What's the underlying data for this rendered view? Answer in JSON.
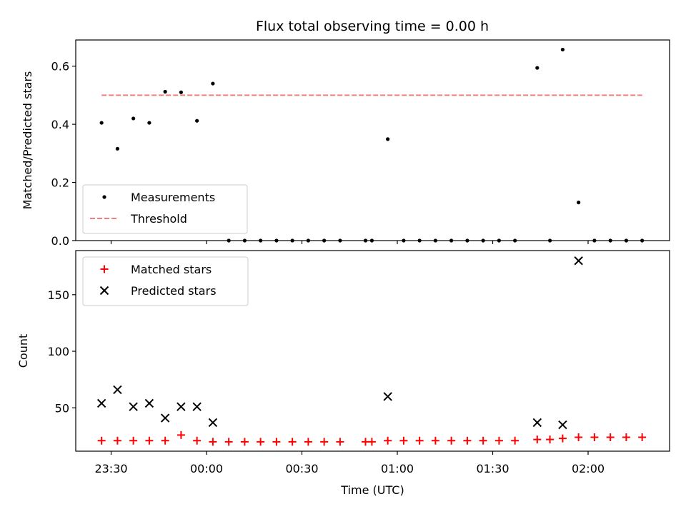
{
  "chart_data": [
    {
      "type": "scatter",
      "title": "Flux total observing time = 0.00 h",
      "xlabel": "",
      "ylabel": "Matched/Predicted stars",
      "ylim": [
        0,
        0.69
      ],
      "yticks": [
        0.0,
        0.2,
        0.4,
        0.6
      ],
      "ytick_labels": [
        "0.0",
        "0.2",
        "0.4",
        "0.6"
      ],
      "grid": false,
      "legend_position": "lower-left",
      "series": [
        {
          "name": "Measurements",
          "marker": "dot",
          "color": "#000000",
          "x": [
            "23:27",
            "23:32",
            "23:37",
            "23:42",
            "23:47",
            "23:52",
            "23:57",
            "00:02",
            "00:07",
            "00:12",
            "00:17",
            "00:22",
            "00:27",
            "00:32",
            "00:37",
            "00:42",
            "00:50",
            "00:52",
            "00:57",
            "01:02",
            "01:07",
            "01:12",
            "01:17",
            "01:22",
            "01:27",
            "01:32",
            "01:37",
            "01:44",
            "01:48",
            "01:52",
            "01:57",
            "02:02",
            "02:07",
            "02:12",
            "02:17"
          ],
          "y": [
            0.405,
            0.316,
            0.42,
            0.405,
            0.512,
            0.51,
            0.412,
            0.54,
            0,
            0,
            0,
            0,
            0,
            0,
            0,
            0,
            0,
            0,
            0.349,
            0,
            0,
            0,
            0,
            0,
            0,
            0,
            0,
            0.594,
            0,
            0.657,
            0.131,
            0,
            0,
            0,
            0
          ]
        },
        {
          "name": "Threshold",
          "style": "dashed",
          "color": "#f08080",
          "x": [
            "23:27",
            "02:17"
          ],
          "y": [
            0.5,
            0.5
          ]
        }
      ]
    },
    {
      "type": "scatter",
      "title": "",
      "xlabel": "Time (UTC)",
      "ylabel": "Count",
      "ylim": [
        11.7,
        189
      ],
      "yticks": [
        50,
        100,
        150
      ],
      "ytick_labels": [
        "50",
        "100",
        "150"
      ],
      "xticks": [
        "23:30",
        "00:00",
        "00:30",
        "01:00",
        "01:30",
        "02:00"
      ],
      "grid": false,
      "legend_position": "upper-left",
      "series": [
        {
          "name": "Matched stars",
          "marker": "plus",
          "color": "#ff0000",
          "x": [
            "23:27",
            "23:32",
            "23:37",
            "23:42",
            "23:47",
            "23:52",
            "23:57",
            "00:02",
            "00:07",
            "00:12",
            "00:17",
            "00:22",
            "00:27",
            "00:32",
            "00:37",
            "00:42",
            "00:50",
            "00:52",
            "00:57",
            "01:02",
            "01:07",
            "01:12",
            "01:17",
            "01:22",
            "01:27",
            "01:32",
            "01:37",
            "01:44",
            "01:48",
            "01:52",
            "01:57",
            "02:02",
            "02:07",
            "02:12",
            "02:17"
          ],
          "y": [
            21,
            21,
            21,
            21,
            21,
            26,
            21,
            20,
            20,
            20,
            20,
            20,
            20,
            20,
            20,
            20,
            20,
            20,
            21,
            21,
            21,
            21,
            21,
            21,
            21,
            21,
            21,
            22,
            22,
            23,
            24,
            24,
            24,
            24,
            24
          ]
        },
        {
          "name": "Predicted stars",
          "marker": "x",
          "color": "#000000",
          "x": [
            "23:27",
            "23:32",
            "23:37",
            "23:42",
            "23:47",
            "23:52",
            "23:57",
            "00:02",
            "00:57",
            "01:44",
            "01:52",
            "01:57"
          ],
          "y": [
            54,
            66,
            51,
            54,
            41,
            51,
            51,
            37,
            60,
            37,
            35,
            180
          ]
        }
      ]
    }
  ]
}
